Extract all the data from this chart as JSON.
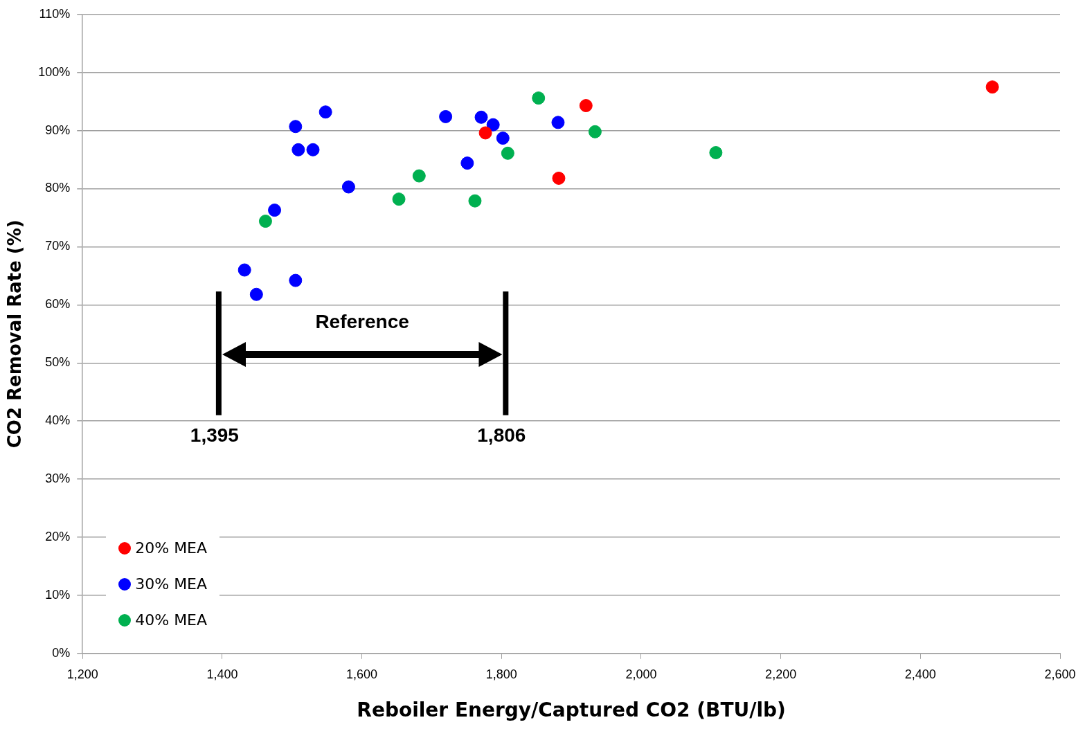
{
  "chart_data": {
    "type": "scatter",
    "xlabel": "Reboiler Energy/Captured CO2 (BTU/lb)",
    "ylabel": "CO2 Removal Rate (%)",
    "series": [
      {
        "name": "20% MEA",
        "color": "#ff0000",
        "x": [
          1777,
          1921,
          1882,
          2503
        ],
        "values": [
          89.6,
          94.3,
          81.8,
          97.5
        ]
      },
      {
        "name": "30% MEA",
        "color": "#0000ff",
        "x": [
          1505,
          1509,
          1530,
          1548,
          1581,
          1475,
          1432,
          1449,
          1505,
          1720,
          1751,
          1771,
          1788,
          1802,
          1881
        ],
        "values": [
          90.7,
          86.7,
          86.7,
          93.2,
          80.3,
          76.3,
          66.0,
          61.8,
          64.2,
          92.4,
          84.4,
          92.3,
          91.0,
          88.7,
          91.4
        ]
      },
      {
        "name": "40% MEA",
        "color": "#00b050",
        "x": [
          1462,
          1653,
          1682,
          1762,
          1809,
          1853,
          1934,
          2107
        ],
        "values": [
          74.4,
          78.2,
          82.2,
          77.9,
          86.1,
          95.6,
          89.8,
          86.2
        ]
      }
    ],
    "xlim": [
      1200,
      2600
    ],
    "xticks": [
      {
        "value": 1200,
        "label": "1,200"
      },
      {
        "value": 1400,
        "label": "1,400"
      },
      {
        "value": 1600,
        "label": "1,600"
      },
      {
        "value": 1800,
        "label": "1,800"
      },
      {
        "value": 2000,
        "label": "2,000"
      },
      {
        "value": 2200,
        "label": "2,200"
      },
      {
        "value": 2400,
        "label": "2,400"
      },
      {
        "value": 2600,
        "label": "2,600"
      }
    ],
    "ylim": [
      0,
      110
    ],
    "yticks": [
      {
        "value": 0,
        "label": "0%"
      },
      {
        "value": 10,
        "label": "10%"
      },
      {
        "value": 20,
        "label": "20%"
      },
      {
        "value": 30,
        "label": "30%"
      },
      {
        "value": 40,
        "label": "40%"
      },
      {
        "value": 50,
        "label": "50%"
      },
      {
        "value": 60,
        "label": "60%"
      },
      {
        "value": 70,
        "label": "70%"
      },
      {
        "value": 80,
        "label": "80%"
      },
      {
        "value": 90,
        "label": "90%"
      },
      {
        "value": 100,
        "label": "100%"
      },
      {
        "value": 110,
        "label": "110%"
      }
    ],
    "ref_lines": [
      {
        "axis": "x",
        "value": 1395,
        "label": "1,395",
        "color": "#000000"
      },
      {
        "axis": "x",
        "value": 1806,
        "label": "1,806",
        "color": "#000000"
      }
    ],
    "annotations": [
      "Reference"
    ],
    "grid": "y",
    "legend": "bottom left",
    "marker": "circle"
  }
}
